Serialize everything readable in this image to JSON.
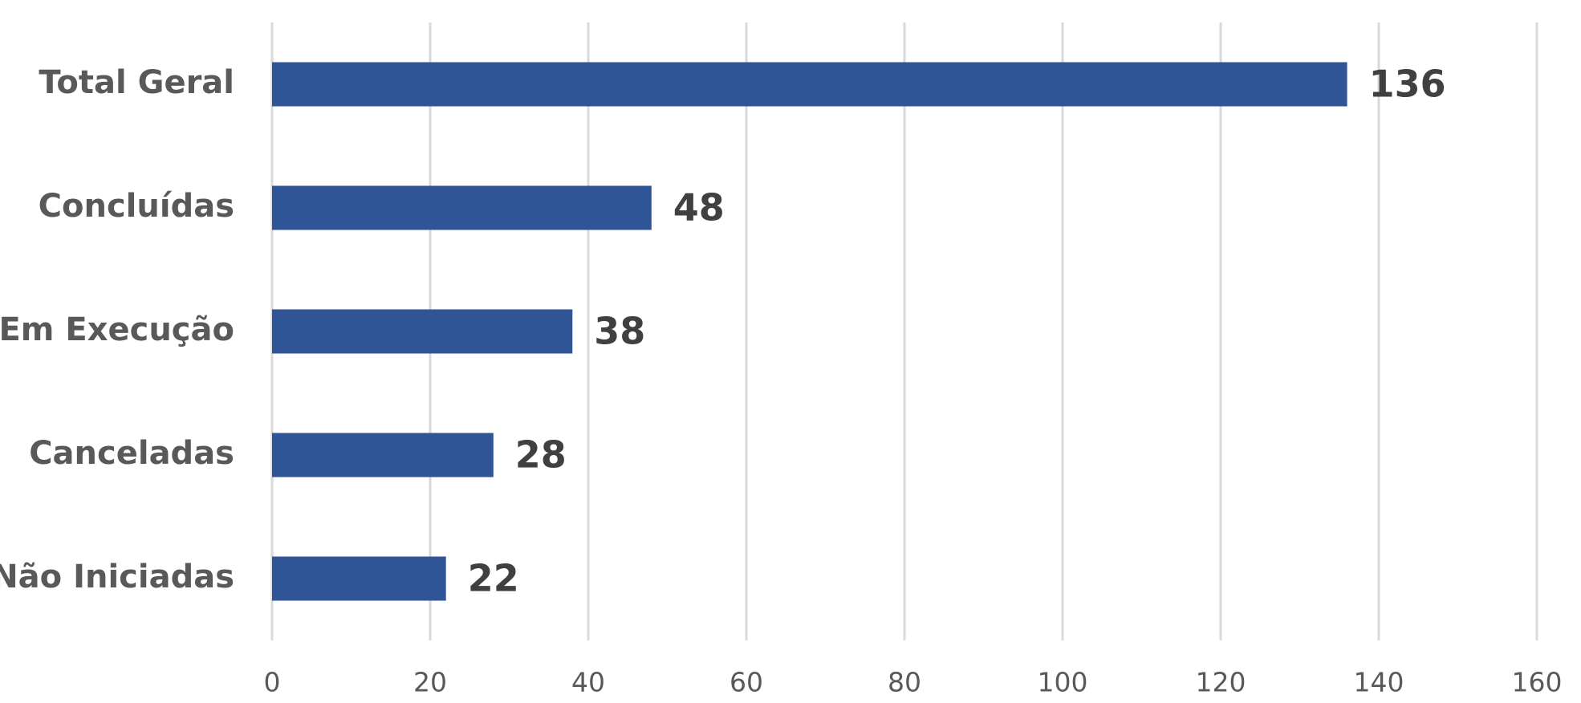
{
  "chart_data": {
    "type": "hbar",
    "categories": [
      "Total Geral",
      "Concluídas",
      "Em Execução",
      "Canceladas",
      "Não Iniciadas"
    ],
    "values": [
      136,
      48,
      38,
      28,
      22
    ],
    "color": "#2f5597",
    "xlim": [
      0,
      160
    ],
    "xticks": [
      0,
      20,
      40,
      60,
      80,
      100,
      120,
      140,
      160
    ],
    "grid": true
  }
}
